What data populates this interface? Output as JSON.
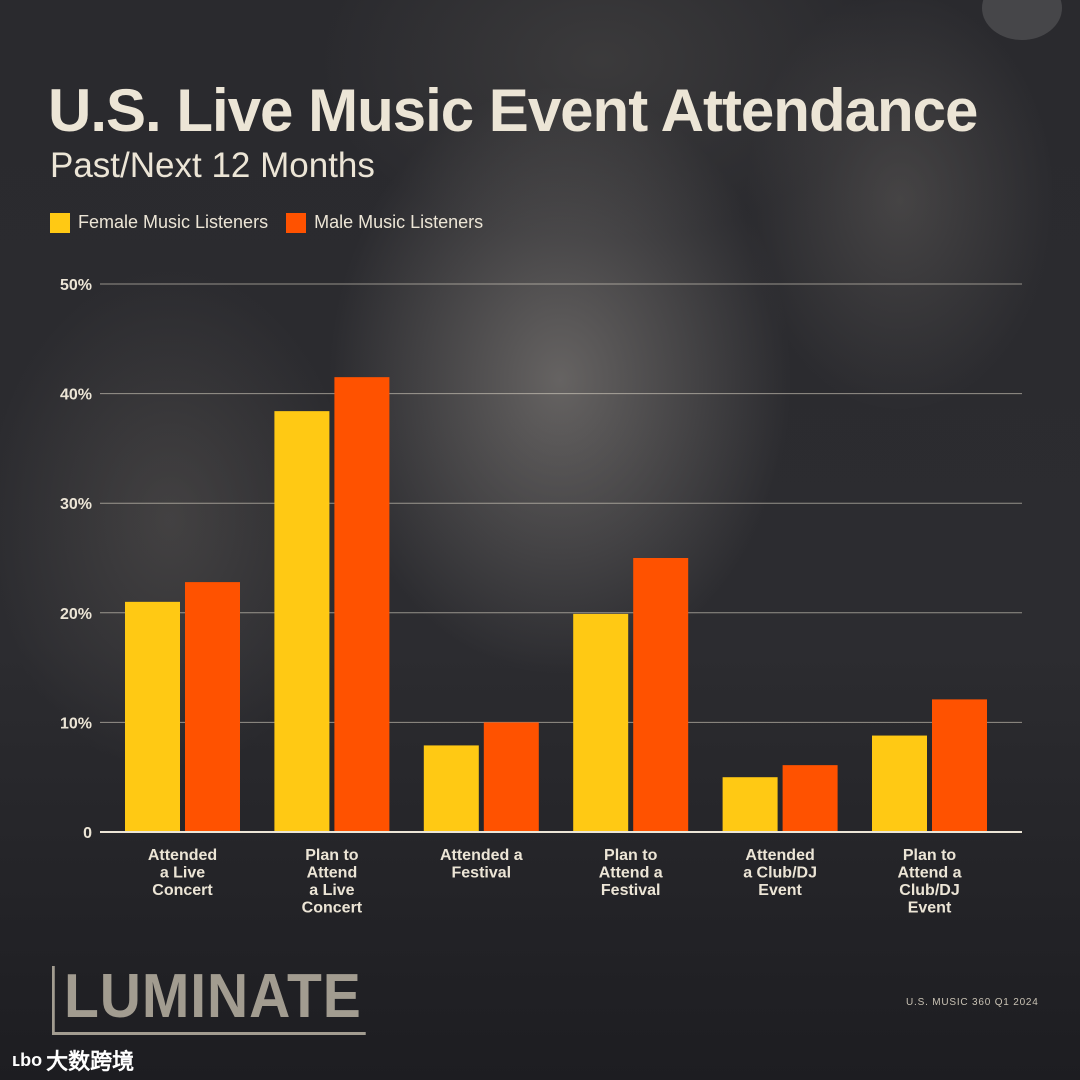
{
  "title": "U.S. Live Music Event Attendance",
  "subtitle": "Past/Next 12 Months",
  "legend": [
    {
      "label": "Female Music Listeners",
      "color": "#ffc914"
    },
    {
      "label": "Male Music Listeners",
      "color": "#ff5200"
    }
  ],
  "chart_data": {
    "type": "bar",
    "title": "U.S. Live Music Event Attendance",
    "subtitle": "Past/Next 12 Months",
    "xlabel": "",
    "ylabel": "",
    "ylim": [
      0,
      50
    ],
    "yticks": [
      0,
      10,
      20,
      30,
      40,
      50
    ],
    "ytick_labels": [
      "0",
      "10%",
      "20%",
      "30%",
      "40%",
      "50%"
    ],
    "grid": true,
    "legend_position": "top-left",
    "categories": [
      [
        "Attended",
        "a Live",
        "Concert"
      ],
      [
        "Plan to",
        "Attend",
        "a Live",
        "Concert"
      ],
      [
        "Attended a",
        "Festival"
      ],
      [
        "Plan to",
        "Attend a",
        "Festival"
      ],
      [
        "Attended",
        "a Club/DJ",
        "Event"
      ],
      [
        "Plan to",
        "Attend a",
        "Club/DJ",
        "Event"
      ]
    ],
    "series": [
      {
        "name": "Female Music Listeners",
        "color": "#ffc914",
        "values": [
          21.0,
          38.4,
          7.9,
          19.9,
          5.0,
          8.8
        ]
      },
      {
        "name": "Male Music Listeners",
        "color": "#ff5200",
        "values": [
          22.8,
          41.5,
          10.0,
          25.0,
          6.1,
          12.1
        ]
      }
    ]
  },
  "brand": "LUMINATE",
  "source": "U.S. MUSIC 360 Q1 2024",
  "watermark": {
    "logo": "ʟbo",
    "text": "大数跨境"
  }
}
